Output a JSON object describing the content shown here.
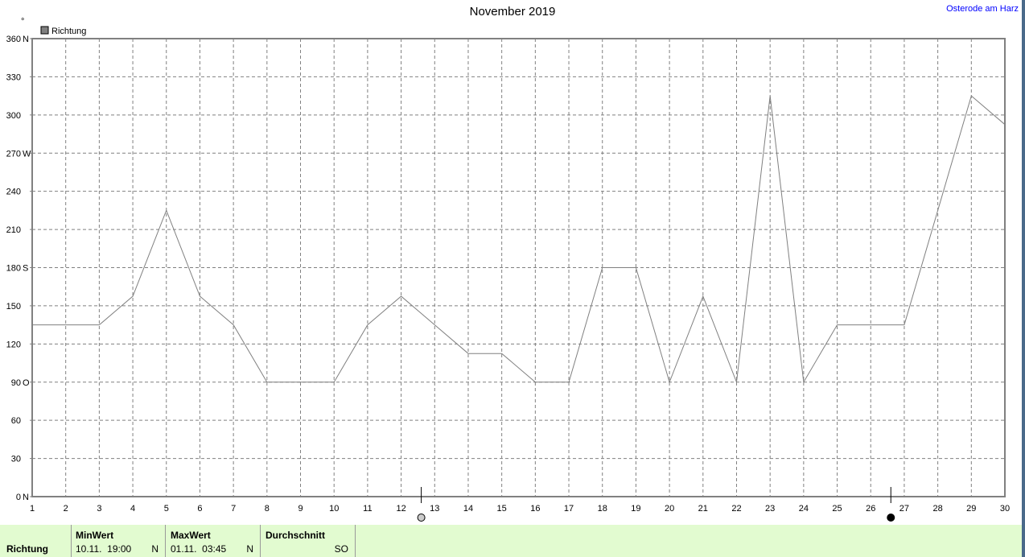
{
  "title": "November 2019",
  "location": "Osterode am Harz",
  "chart_data": {
    "type": "line",
    "title": "November 2019",
    "ylabel": "°",
    "legend": {
      "entries": [
        "Richtung"
      ],
      "position": "top-left"
    },
    "x": [
      1,
      2,
      3,
      4,
      5,
      6,
      7,
      8,
      9,
      10,
      11,
      12,
      13,
      14,
      15,
      16,
      17,
      18,
      19,
      20,
      21,
      22,
      23,
      24,
      25,
      26,
      27,
      28,
      29,
      30
    ],
    "xlim": [
      1,
      30
    ],
    "ylim": [
      0,
      360
    ],
    "grid": true,
    "ytick_labels": [
      "0 N",
      "30",
      "60",
      "90 O",
      "120",
      "150",
      "180 S",
      "210",
      "240",
      "270 W",
      "300",
      "330",
      "360 N"
    ],
    "series": [
      {
        "name": "Richtung",
        "color": "#808080",
        "values": [
          135,
          135,
          135,
          157.5,
          225,
          157.5,
          135,
          90,
          90,
          90,
          135,
          157.5,
          135,
          112.5,
          112.5,
          90,
          90,
          180,
          180,
          90,
          157.5,
          90,
          315,
          90,
          135,
          135,
          135,
          225,
          315,
          292.5
        ]
      }
    ],
    "moon_phases": [
      {
        "day": 12.6,
        "phase": "full-moon"
      },
      {
        "day": 26.6,
        "phase": "new-moon"
      }
    ]
  },
  "table": {
    "row_label": "Richtung",
    "min": {
      "header": "MinWert",
      "value": "10.11.  19:00",
      "unit": "N"
    },
    "max": {
      "header": "MaxWert",
      "value": "01.11.  03:45",
      "unit": "N"
    },
    "avg": {
      "header": "Durchschnitt",
      "value": "",
      "unit": "SO"
    }
  }
}
